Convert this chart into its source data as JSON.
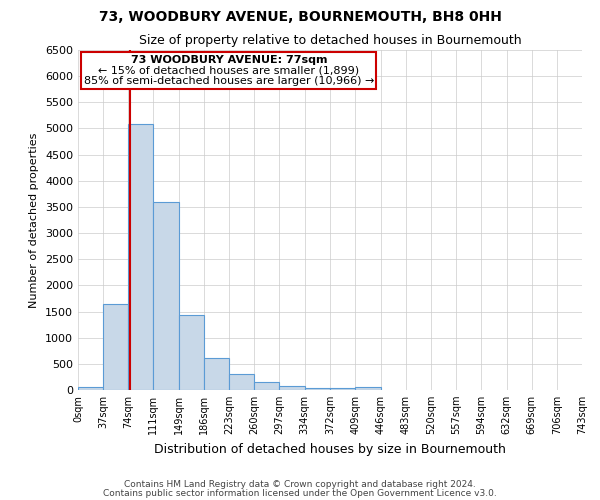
{
  "title": "73, WOODBURY AVENUE, BOURNEMOUTH, BH8 0HH",
  "subtitle": "Size of property relative to detached houses in Bournemouth",
  "xlabel": "Distribution of detached houses by size in Bournemouth",
  "ylabel": "Number of detached properties",
  "annotation_title": "73 WOODBURY AVENUE: 77sqm",
  "annotation_line1": "← 15% of detached houses are smaller (1,899)",
  "annotation_line2": "85% of semi-detached houses are larger (10,966) →",
  "property_line_x": 77,
  "bar_edges": [
    0,
    37,
    74,
    111,
    149,
    186,
    223,
    260,
    297,
    334,
    372,
    409,
    446,
    483,
    520,
    557,
    594,
    632,
    669,
    706,
    743
  ],
  "bar_heights": [
    50,
    1650,
    5080,
    3600,
    1430,
    620,
    300,
    150,
    75,
    40,
    30,
    50,
    0,
    0,
    0,
    0,
    0,
    0,
    0,
    0
  ],
  "bar_color": "#c8d8e8",
  "bar_edge_color": "#5b9bd5",
  "red_line_color": "#cc0000",
  "annotation_box_color": "#ffffff",
  "annotation_box_edge": "#cc0000",
  "ylim": [
    0,
    6500
  ],
  "yticks": [
    0,
    500,
    1000,
    1500,
    2000,
    2500,
    3000,
    3500,
    4000,
    4500,
    5000,
    5500,
    6000,
    6500
  ],
  "tick_labels": [
    "0sqm",
    "37sqm",
    "74sqm",
    "111sqm",
    "149sqm",
    "186sqm",
    "223sqm",
    "260sqm",
    "297sqm",
    "334sqm",
    "372sqm",
    "409sqm",
    "446sqm",
    "483sqm",
    "520sqm",
    "557sqm",
    "594sqm",
    "632sqm",
    "669sqm",
    "706sqm",
    "743sqm"
  ],
  "footer1": "Contains HM Land Registry data © Crown copyright and database right 2024.",
  "footer2": "Contains public sector information licensed under the Open Government Licence v3.0.",
  "background_color": "#ffffff",
  "grid_color": "#cccccc"
}
